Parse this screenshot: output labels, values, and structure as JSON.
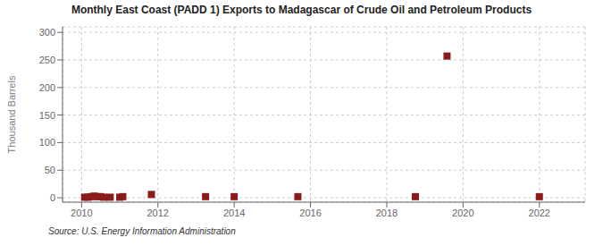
{
  "chart_data": {
    "type": "scatter",
    "title": "Monthly East Coast (PADD 1) Exports to Madagascar of Crude Oil and Petroleum Products",
    "y_label": "Thousand Barrels",
    "annotations": [
      "Source: U.S. Energy Information Administration"
    ],
    "x": [
      2010.08,
      2010.17,
      2010.25,
      2010.33,
      2010.42,
      2010.5,
      2010.58,
      2010.75,
      2011.0,
      2011.08,
      2011.83,
      2013.25,
      2014.0,
      2015.67,
      2018.75,
      2019.58,
      2022.0
    ],
    "values": [
      1,
      1,
      2,
      3,
      2,
      2,
      1,
      1,
      1,
      2,
      6,
      2,
      2,
      2,
      2,
      257,
      2
    ],
    "color": "#8b1a1a",
    "marker": "square",
    "xlim": [
      2009.5,
      2023.2
    ],
    "ylim": [
      -8,
      310
    ],
    "xticks": [
      2010,
      2012,
      2014,
      2016,
      2018,
      2020,
      2022
    ],
    "yticks": [
      0,
      50,
      100,
      150,
      200,
      250,
      300
    ],
    "grid": true
  }
}
